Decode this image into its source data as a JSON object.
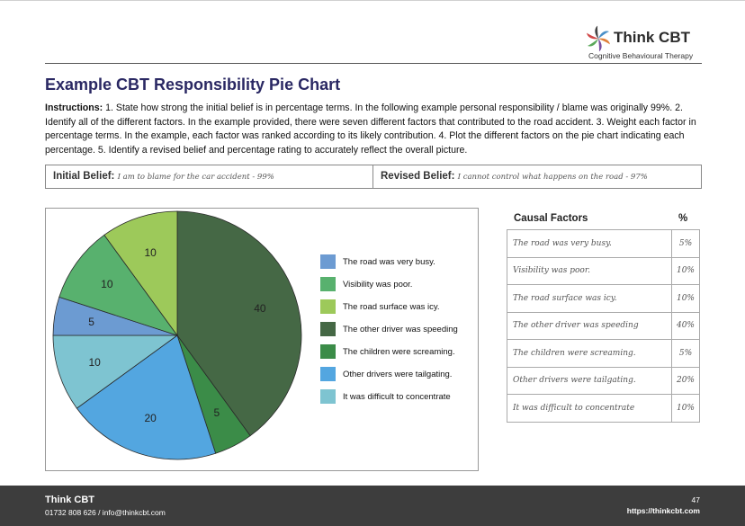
{
  "header": {
    "logo_title": "Think CBT",
    "logo_subtitle": "Cognitive Behavioural Therapy"
  },
  "title": "Example CBT Responsibility Pie Chart",
  "instructions": {
    "label": "Instructions:",
    "text": " 1. State how strong the initial belief is in percentage terms. In the following example personal responsibility / blame was originally 99%. 2. Identify all of the different factors. In the example provided, there were seven different factors that contributed to the road accident. 3. Weight each factor in percentage terms. In the example, each factor was ranked according to its likely contribution. 4. Plot the different factors on the pie chart indicating each percentage. 5. Identify a revised belief and percentage rating to accurately reflect the overall picture."
  },
  "beliefs": {
    "initial_label": "Initial Belief:",
    "initial_value": "I am to blame for the car accident - 99%",
    "revised_label": "Revised Belief:",
    "revised_value": "I cannot control what happens on the road - 97%"
  },
  "chart_data": {
    "type": "pie",
    "title": "",
    "categories": [
      "The road was very busy.",
      "Visibility was poor.",
      "The road surface was icy.",
      "The other driver was speeding",
      "The children were screaming.",
      "Other drivers were tailgating.",
      "It was difficult to concentrate"
    ],
    "values": [
      5,
      10,
      10,
      40,
      5,
      20,
      10
    ],
    "slice_order": [
      3,
      4,
      5,
      6,
      0,
      1,
      2
    ],
    "colors": [
      "#6c9bd2",
      "#58b16e",
      "#9dc95a",
      "#456845",
      "#3b8c48",
      "#53a6e0",
      "#7ec4d1"
    ],
    "legend_position": "right"
  },
  "factors_table": {
    "header": {
      "factor": "Causal Factors",
      "percent": "%"
    },
    "rows": [
      {
        "factor": "The road was very busy.",
        "percent": "5%"
      },
      {
        "factor": "Visibility was poor.",
        "percent": "10%"
      },
      {
        "factor": "The road surface was icy.",
        "percent": "10%"
      },
      {
        "factor": "The other driver was speeding",
        "percent": "40%"
      },
      {
        "factor": "The children were screaming.",
        "percent": "5%"
      },
      {
        "factor": "Other drivers were tailgating.",
        "percent": "20%"
      },
      {
        "factor": "It was difficult to concentrate",
        "percent": "10%"
      }
    ]
  },
  "footer": {
    "brand": "Think CBT",
    "contact": "01732 808 626  /  info@thinkcbt.com",
    "page": "47",
    "url": "https://thinkcbt.com"
  }
}
